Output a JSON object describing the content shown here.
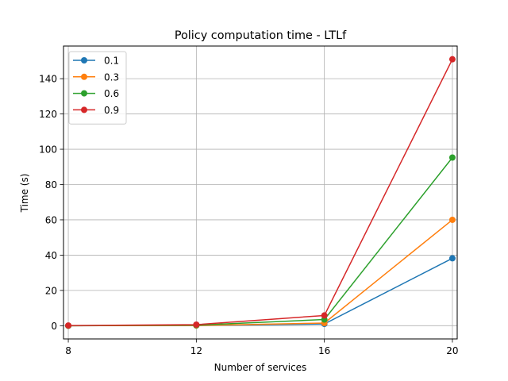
{
  "chart_data": {
    "type": "line",
    "title": "Policy computation time - LTLf",
    "xlabel": "Number of services",
    "ylabel": "Time (s)",
    "x": [
      8,
      12,
      16,
      20
    ],
    "x_ticks": [
      "8",
      "12",
      "16",
      "20"
    ],
    "y_ticks": [
      0,
      20,
      40,
      60,
      80,
      100,
      120,
      140
    ],
    "xlim": [
      7.85,
      20.15
    ],
    "ylim": [
      -7.5,
      158.5
    ],
    "grid": true,
    "legend_position": "top-left",
    "series": [
      {
        "name": "0.1",
        "color": "#1f77b4",
        "values": [
          0.0,
          0.1,
          1.0,
          38.2
        ]
      },
      {
        "name": "0.3",
        "color": "#ff7f0e",
        "values": [
          0.0,
          0.1,
          1.5,
          60.0
        ]
      },
      {
        "name": "0.6",
        "color": "#2ca02c",
        "values": [
          0.0,
          0.3,
          3.5,
          95.3
        ]
      },
      {
        "name": "0.9",
        "color": "#d62728",
        "values": [
          0.1,
          0.6,
          5.8,
          151.0
        ]
      }
    ]
  }
}
